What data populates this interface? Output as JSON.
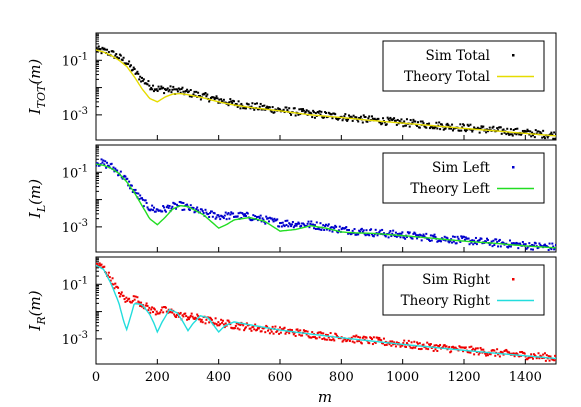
{
  "chart_data": [
    {
      "type": "scatter",
      "ylabel": "I_TOT(m)",
      "ylabel_main": "I",
      "ylabel_sub": "TOT",
      "ylabel_tail": "(m)",
      "xlim": [
        0,
        1500
      ],
      "ylim": [
        0.00012,
        1.0
      ],
      "yscale": "log",
      "yticks": [
        {
          "label": "10",
          "exp": "-1",
          "value": 0.1
        },
        {
          "label": "10",
          "exp": "-3",
          "value": 0.001
        }
      ],
      "legend_position": "top-right",
      "series": [
        {
          "name": "Sim Total",
          "kind": "points",
          "color": "#000000",
          "x": [
            0,
            25,
            50,
            75,
            100,
            125,
            150,
            175,
            200,
            225,
            250,
            275,
            300,
            350,
            400,
            450,
            500,
            600,
            700,
            800,
            900,
            1000,
            1100,
            1200,
            1300,
            1400,
            1500
          ],
          "y": [
            0.24,
            0.22,
            0.18,
            0.13,
            0.085,
            0.04,
            0.02,
            0.012,
            0.009,
            0.0085,
            0.0082,
            0.0075,
            0.0065,
            0.0048,
            0.0035,
            0.0026,
            0.0021,
            0.0015,
            0.0011,
            0.00085,
            0.00065,
            0.00052,
            0.00042,
            0.00034,
            0.00027,
            0.00022,
            0.00018
          ]
        },
        {
          "name": "Theory Total",
          "kind": "line",
          "color": "#e6dc00",
          "x": [
            0,
            25,
            50,
            75,
            100,
            125,
            150,
            175,
            200,
            225,
            250,
            275,
            300,
            350,
            400,
            450,
            500,
            600,
            700,
            800,
            900,
            1000,
            1100,
            1200,
            1300,
            1400,
            1500
          ],
          "y": [
            0.24,
            0.2,
            0.15,
            0.1,
            0.06,
            0.025,
            0.009,
            0.004,
            0.003,
            0.0045,
            0.0058,
            0.006,
            0.0055,
            0.0042,
            0.003,
            0.0023,
            0.0019,
            0.0014,
            0.001,
            0.0008,
            0.00062,
            0.0005,
            0.0004,
            0.00032,
            0.00026,
            0.00021,
            0.00017
          ]
        }
      ]
    },
    {
      "type": "scatter",
      "ylabel": "I_L(m)",
      "ylabel_main": "I",
      "ylabel_sub": "L",
      "ylabel_tail": "(m)",
      "xlim": [
        0,
        1500
      ],
      "ylim": [
        0.00012,
        1.0
      ],
      "yscale": "log",
      "yticks": [
        {
          "label": "10",
          "exp": "-1",
          "value": 0.1
        },
        {
          "label": "10",
          "exp": "-3",
          "value": 0.001
        }
      ],
      "legend_position": "top-right",
      "series": [
        {
          "name": "Sim Left",
          "kind": "points",
          "color": "#0000cc",
          "x": [
            0,
            25,
            50,
            75,
            100,
            125,
            150,
            175,
            200,
            225,
            250,
            275,
            300,
            350,
            400,
            450,
            500,
            550,
            600,
            650,
            700,
            750,
            800,
            900,
            1000,
            1100,
            1200,
            1300,
            1400,
            1500
          ],
          "y": [
            0.24,
            0.21,
            0.16,
            0.1,
            0.05,
            0.02,
            0.009,
            0.005,
            0.004,
            0.0045,
            0.0055,
            0.006,
            0.005,
            0.0032,
            0.0025,
            0.0026,
            0.0024,
            0.0018,
            0.0014,
            0.0013,
            0.0012,
            0.001,
            0.0008,
            0.00062,
            0.0005,
            0.0004,
            0.00032,
            0.00026,
            0.00021,
            0.00018
          ]
        },
        {
          "name": "Theory Left",
          "kind": "line",
          "color": "#22dd22",
          "x": [
            0,
            25,
            50,
            75,
            100,
            125,
            150,
            175,
            200,
            225,
            250,
            275,
            300,
            350,
            400,
            425,
            450,
            500,
            550,
            600,
            650,
            700,
            750,
            800,
            850,
            900,
            1000,
            1100,
            1200,
            1300,
            1400,
            1500
          ],
          "y": [
            0.2,
            0.18,
            0.14,
            0.09,
            0.045,
            0.018,
            0.006,
            0.002,
            0.0012,
            0.0022,
            0.0045,
            0.006,
            0.0055,
            0.0028,
            0.0009,
            0.0012,
            0.0018,
            0.0022,
            0.0016,
            0.0007,
            0.0008,
            0.0011,
            0.0009,
            0.00065,
            0.0006,
            0.00058,
            0.00048,
            0.00038,
            0.0003,
            0.00025,
            0.0002,
            0.00017
          ]
        }
      ]
    },
    {
      "type": "scatter",
      "ylabel": "I_R(m)",
      "ylabel_main": "I",
      "ylabel_sub": "R",
      "ylabel_tail": "(m)",
      "xlabel": "m",
      "xlim": [
        0,
        1500
      ],
      "ylim": [
        0.00012,
        1.0
      ],
      "yscale": "log",
      "xticks": [
        0,
        200,
        400,
        600,
        800,
        1000,
        1200,
        1400
      ],
      "yticks": [
        {
          "label": "10",
          "exp": "-1",
          "value": 0.1
        },
        {
          "label": "10",
          "exp": "-3",
          "value": 0.001
        }
      ],
      "legend_position": "top-right",
      "series": [
        {
          "name": "Sim Right",
          "kind": "points",
          "color": "#ee0000",
          "x": [
            0,
            25,
            50,
            75,
            100,
            125,
            150,
            175,
            200,
            225,
            250,
            275,
            300,
            325,
            350,
            375,
            400,
            450,
            500,
            600,
            700,
            800,
            900,
            1000,
            1100,
            1200,
            1300,
            1400,
            1500
          ],
          "y": [
            0.55,
            0.4,
            0.15,
            0.05,
            0.025,
            0.03,
            0.02,
            0.012,
            0.01,
            0.011,
            0.009,
            0.007,
            0.0065,
            0.006,
            0.005,
            0.0045,
            0.004,
            0.0032,
            0.0027,
            0.002,
            0.0015,
            0.0011,
            0.00085,
            0.00065,
            0.0005,
            0.0004,
            0.00031,
            0.00025,
            0.0002
          ]
        },
        {
          "name": "Theory Right",
          "kind": "line",
          "color": "#22dddd",
          "x": [
            0,
            25,
            50,
            75,
            90,
            100,
            110,
            125,
            150,
            175,
            190,
            200,
            215,
            240,
            265,
            285,
            300,
            315,
            340,
            365,
            385,
            400,
            420,
            450,
            500,
            600,
            700,
            800,
            900,
            1000,
            1100,
            1200,
            1300,
            1400,
            1500
          ],
          "y": [
            0.5,
            0.35,
            0.1,
            0.02,
            0.0045,
            0.0022,
            0.005,
            0.02,
            0.018,
            0.008,
            0.0035,
            0.0018,
            0.004,
            0.012,
            0.009,
            0.004,
            0.002,
            0.0035,
            0.007,
            0.006,
            0.003,
            0.0018,
            0.003,
            0.0042,
            0.0033,
            0.0021,
            0.0015,
            0.0011,
            0.00083,
            0.00063,
            0.00049,
            0.00038,
            0.0003,
            0.00024,
            0.00019
          ]
        }
      ]
    }
  ]
}
